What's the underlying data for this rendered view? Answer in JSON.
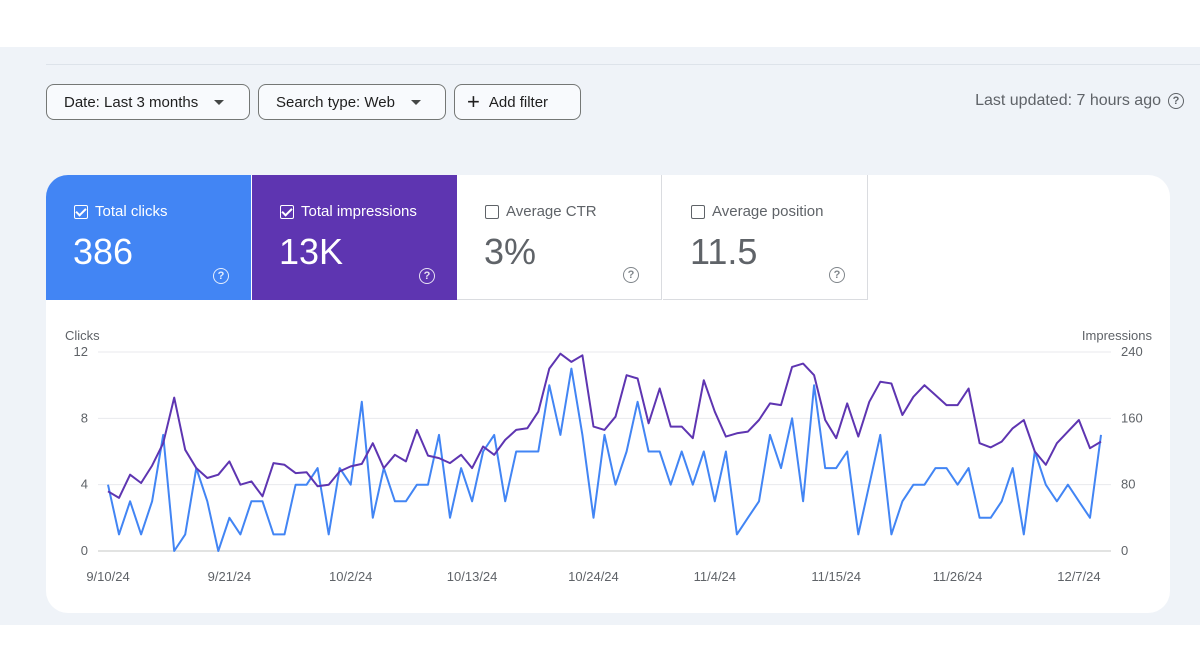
{
  "filters": {
    "date_label": "Date: Last 3 months",
    "search_type_label": "Search type: Web",
    "add_filter_label": "Add filter",
    "last_updated": "Last updated: 7 hours ago"
  },
  "metrics": [
    {
      "label": "Total clicks",
      "value": "386",
      "checked": true,
      "color": "#4285f4"
    },
    {
      "label": "Total impressions",
      "value": "13K",
      "checked": true,
      "color": "#5e35b1"
    },
    {
      "label": "Average CTR",
      "value": "3%",
      "checked": false
    },
    {
      "label": "Average position",
      "value": "11.5",
      "checked": false
    }
  ],
  "icons": {
    "help": "help-circle-icon",
    "dropdown": "chevron-down-icon",
    "add": "plus-icon",
    "checkbox": "checkbox-icon"
  },
  "chart_data": {
    "type": "line",
    "ylabel_left": "Clicks",
    "ylabel_right": "Impressions",
    "y_left_ticks": [
      "12",
      "8",
      "4",
      "0"
    ],
    "y_right_ticks": [
      "240",
      "160",
      "80",
      "0"
    ],
    "ylim_left": [
      0,
      12
    ],
    "ylim_right": [
      0,
      240
    ],
    "x_tick_labels": [
      "9/10/24",
      "9/21/24",
      "10/2/24",
      "10/13/24",
      "10/24/24",
      "11/4/24",
      "11/15/24",
      "11/26/24",
      "12/7/24"
    ],
    "x_tick_indices": [
      0,
      11,
      22,
      33,
      44,
      55,
      66,
      77,
      88
    ],
    "grid": true,
    "series": [
      {
        "name": "Clicks",
        "axis": "left",
        "color": "#4285f4",
        "values": [
          4,
          1,
          3,
          1,
          3,
          7,
          0,
          1,
          5,
          3,
          0,
          2,
          1,
          3,
          3,
          1,
          1,
          4,
          4,
          5,
          1,
          5,
          4,
          9,
          2,
          5,
          3,
          3,
          4,
          4,
          7,
          2,
          5,
          3,
          6,
          7,
          3,
          6,
          6,
          6,
          10,
          7,
          11,
          7,
          2,
          7,
          4,
          6,
          9,
          6,
          6,
          4,
          6,
          4,
          6,
          3,
          6,
          1,
          2,
          3,
          7,
          5,
          8,
          3,
          10,
          5,
          5,
          6,
          1,
          4,
          7,
          1,
          3,
          4,
          4,
          5,
          5,
          4,
          5,
          2,
          2,
          3,
          5,
          1,
          6,
          4,
          3,
          4,
          3,
          2,
          7
        ]
      },
      {
        "name": "Impressions",
        "axis": "right",
        "color": "#5e35b1",
        "values": [
          72,
          64,
          92,
          82,
          103,
          130,
          185,
          122,
          100,
          88,
          92,
          108,
          80,
          84,
          66,
          106,
          104,
          94,
          95,
          78,
          80,
          96,
          102,
          105,
          130,
          100,
          116,
          108,
          146,
          115,
          112,
          106,
          116,
          100,
          126,
          116,
          134,
          146,
          148,
          168,
          220,
          238,
          228,
          236,
          150,
          146,
          162,
          212,
          208,
          154,
          196,
          150,
          150,
          136,
          206,
          168,
          138,
          142,
          144,
          158,
          178,
          176,
          222,
          226,
          212,
          158,
          136,
          178,
          138,
          180,
          204,
          202,
          164,
          186,
          200,
          188,
          176,
          176,
          196,
          130,
          125,
          132,
          148,
          158,
          120,
          104,
          130,
          144,
          158,
          124,
          132
        ]
      }
    ]
  }
}
